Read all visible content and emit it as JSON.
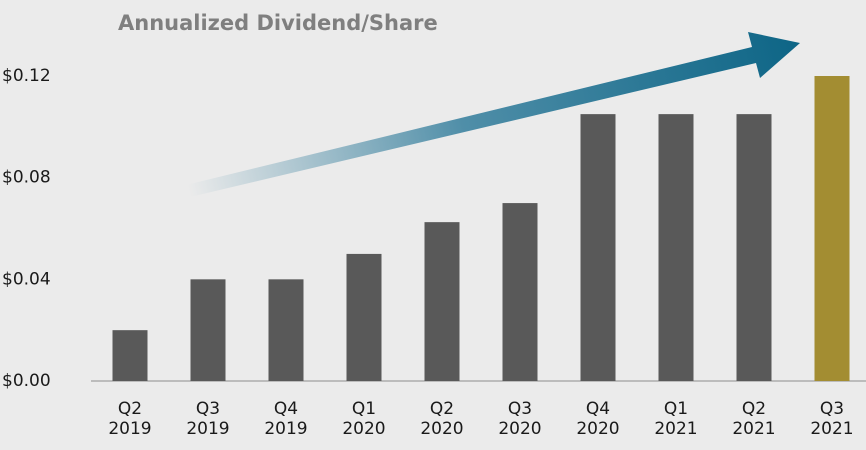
{
  "chart_data": {
    "type": "bar",
    "title": "Annualized Dividend/Share",
    "categories": [
      "Q2 2019",
      "Q3 2019",
      "Q4 2019",
      "Q1 2020",
      "Q2 2020",
      "Q3 2020",
      "Q4 2020",
      "Q1 2021",
      "Q2 2021",
      "Q3 2021"
    ],
    "values": [
      0.02,
      0.04,
      0.04,
      0.05,
      0.0625,
      0.07,
      0.105,
      0.105,
      0.105,
      0.12
    ],
    "colors": [
      "#595959",
      "#595959",
      "#595959",
      "#595959",
      "#595959",
      "#595959",
      "#595959",
      "#595959",
      "#595959",
      "#a38d32"
    ],
    "ylim": [
      0,
      0.12
    ],
    "yticks": [
      {
        "value": 0,
        "label": "$0.00"
      },
      {
        "value": 0.04,
        "label": "$0.04"
      },
      {
        "value": 0.08,
        "label": "$0.08"
      },
      {
        "value": 0.12,
        "label": "$0.12"
      }
    ],
    "grid": false
  }
}
